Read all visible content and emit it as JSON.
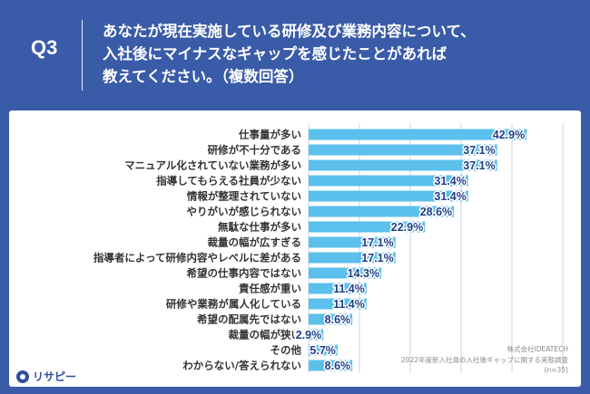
{
  "header": {
    "question_number": "Q3",
    "question_lines": [
      "あなたが現在実施している研修及び業務内容について、",
      "入社後にマイナスなギャップを感じたことがあれば",
      "教えてください。（複数回答）"
    ]
  },
  "chart_data": {
    "type": "bar",
    "orientation": "horizontal",
    "categories": [
      "仕事量が多い",
      "研修が不十分である",
      "マニュアル化されていない業務が多い",
      "指導してもらえる社員が少ない",
      "情報が整理されていない",
      "やりがいが感じられない",
      "無駄な仕事が多い",
      "裁量の幅が広すぎる",
      "指導者によって研修内容やレベルに差がある",
      "希望の仕事内容ではない",
      "責任感が重い",
      "研修や業務が属人化している",
      "希望の配属先ではない",
      "裁量の幅が狭い",
      "その他",
      "わからない/答えられない"
    ],
    "values": [
      42.9,
      37.1,
      37.1,
      31.4,
      31.4,
      28.6,
      22.9,
      17.1,
      17.1,
      14.3,
      11.4,
      11.4,
      8.6,
      2.9,
      5.7,
      8.6
    ],
    "value_labels": [
      "42.9%",
      "37.1%",
      "37.1%",
      "31.4%",
      "31.4%",
      "28.6%",
      "22.9%",
      "17.1%",
      "17.1%",
      "14.3%",
      "11.4%",
      "11.4%",
      "8.6%",
      "2.9%",
      "5.7%",
      "8.6%"
    ],
    "xlim": [
      0,
      50
    ],
    "grid": true,
    "bar_color": "#5bc0eb",
    "grid_color": "#c8d6e8",
    "label_color": "#1f3f88"
  },
  "credit": {
    "company": "株式会社IDEATECH",
    "survey": "2022年度新入社員の入社後ギャップに関する実態調査",
    "sample": "(n=35)"
  },
  "logo": {
    "text": "リサピー"
  },
  "colors": {
    "background": "#3a5ba8",
    "card": "#ffffff"
  }
}
